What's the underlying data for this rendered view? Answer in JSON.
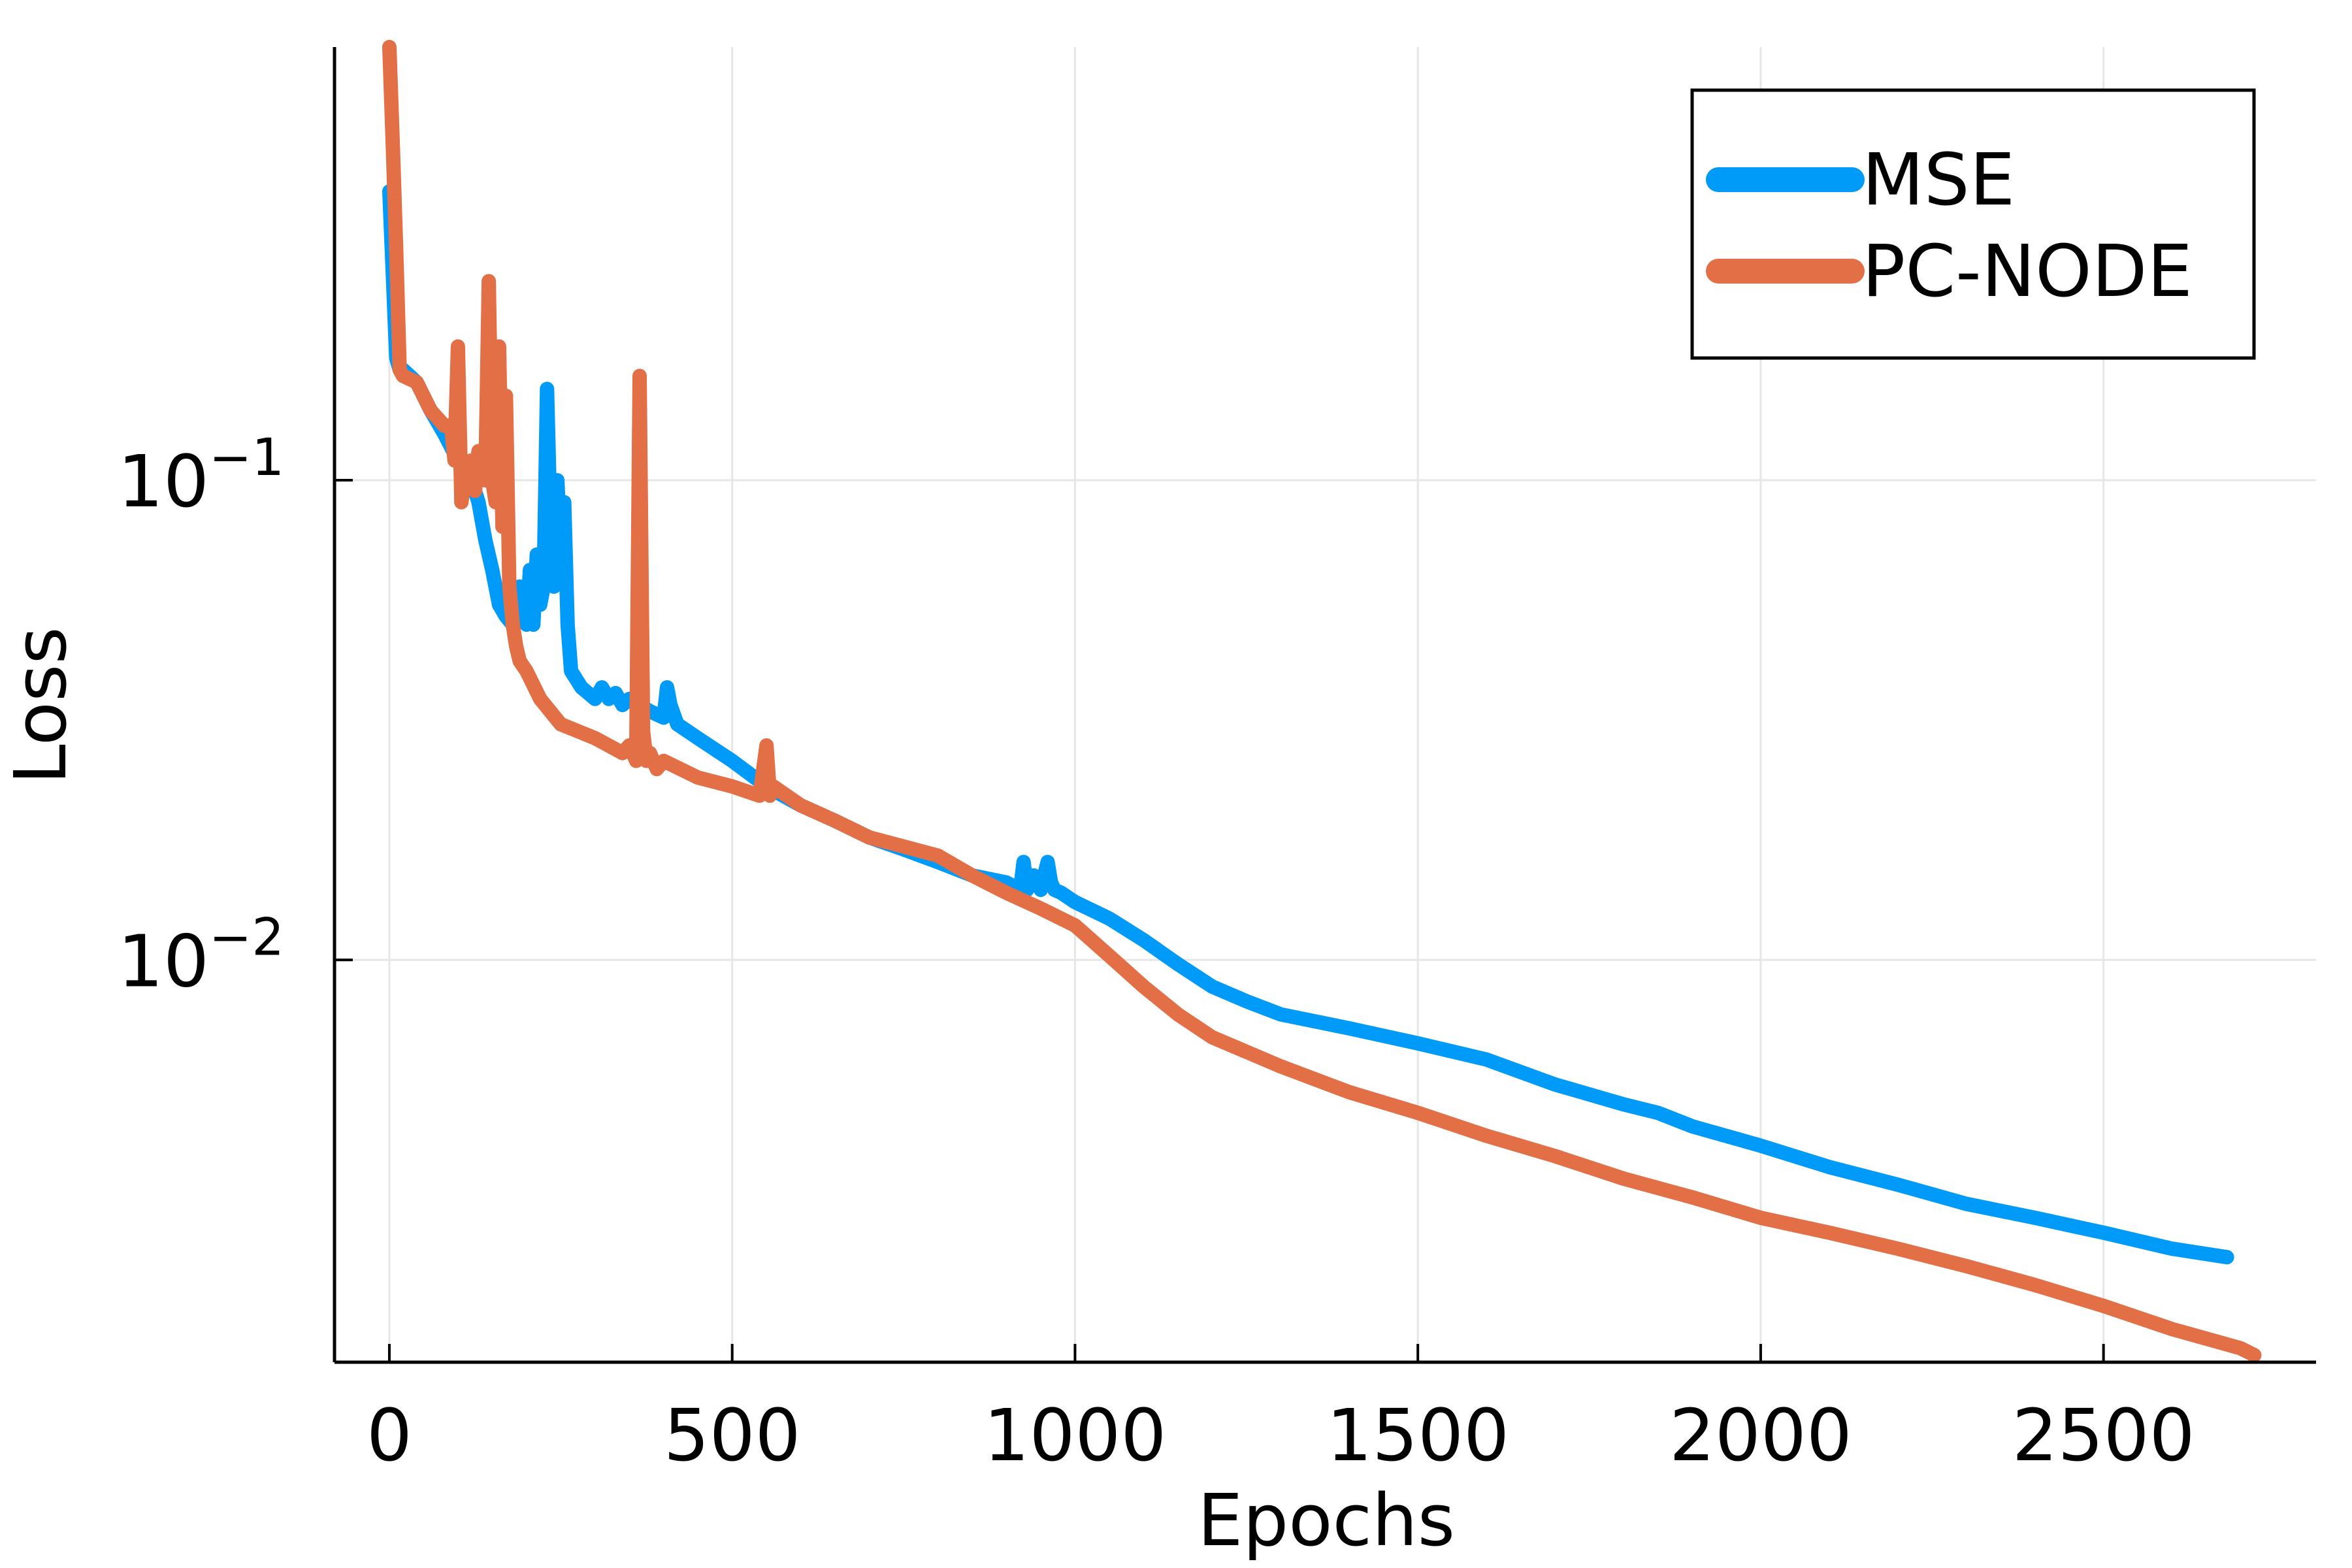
{
  "chart_data": {
    "type": "line",
    "title": "",
    "xlabel": "Epochs",
    "ylabel": "Loss",
    "xlim": [
      -80,
      2810
    ],
    "ylim": [
      0.00145,
      0.8
    ],
    "yscale": "log",
    "xticks": [
      {
        "value": 0,
        "label": "0"
      },
      {
        "value": 500,
        "label": "500"
      },
      {
        "value": 1000,
        "label": "1000"
      },
      {
        "value": 1500,
        "label": "1500"
      },
      {
        "value": 2000,
        "label": "2000"
      },
      {
        "value": 2500,
        "label": "2500"
      }
    ],
    "yticks": [
      {
        "value": 0.1,
        "base": "10",
        "exp": "−1"
      },
      {
        "value": 0.01,
        "base": "10",
        "exp": "−2"
      }
    ],
    "grid": true,
    "legend_position": "top-right",
    "series": [
      {
        "name": "MSE",
        "color": "#009af9",
        "x": [
          0,
          5,
          10,
          15,
          20,
          40,
          60,
          80,
          100,
          120,
          130,
          140,
          150,
          160,
          170,
          180,
          190,
          200,
          205,
          210,
          215,
          220,
          225,
          230,
          235,
          240,
          245,
          250,
          255,
          260,
          265,
          270,
          280,
          300,
          310,
          320,
          330,
          340,
          350,
          380,
          400,
          405,
          410,
          420,
          450,
          500,
          550,
          600,
          650,
          700,
          750,
          800,
          850,
          900,
          920,
          925,
          930,
          940,
          950,
          960,
          965,
          970,
          980,
          1000,
          1050,
          1100,
          1150,
          1200,
          1250,
          1300,
          1400,
          1500,
          1600,
          1700,
          1800,
          1850,
          1900,
          2000,
          2100,
          2200,
          2300,
          2400,
          2500,
          2600,
          2680
        ],
        "y": [
          0.4,
          0.27,
          0.18,
          0.17,
          0.17,
          0.16,
          0.14,
          0.125,
          0.11,
          0.1,
          0.09,
          0.075,
          0.065,
          0.055,
          0.052,
          0.05,
          0.06,
          0.05,
          0.065,
          0.05,
          0.07,
          0.055,
          0.06,
          0.155,
          0.08,
          0.06,
          0.1,
          0.07,
          0.09,
          0.05,
          0.04,
          0.039,
          0.037,
          0.035,
          0.037,
          0.035,
          0.036,
          0.034,
          0.035,
          0.033,
          0.032,
          0.037,
          0.034,
          0.031,
          0.029,
          0.026,
          0.023,
          0.021,
          0.0195,
          0.018,
          0.017,
          0.016,
          0.015,
          0.0145,
          0.014,
          0.016,
          0.014,
          0.015,
          0.014,
          0.016,
          0.0145,
          0.014,
          0.0138,
          0.0132,
          0.0122,
          0.011,
          0.0098,
          0.0088,
          0.0082,
          0.0077,
          0.0072,
          0.0067,
          0.0062,
          0.0055,
          0.005,
          0.0048,
          0.0045,
          0.0041,
          0.0037,
          0.0034,
          0.0031,
          0.0029,
          0.0027,
          0.0025,
          0.0024
        ]
      },
      {
        "name": "PC-NODE",
        "color": "#e26f46",
        "x": [
          0,
          5,
          10,
          15,
          20,
          40,
          60,
          80,
          90,
          95,
          100,
          105,
          110,
          120,
          125,
          130,
          140,
          145,
          150,
          155,
          160,
          165,
          170,
          175,
          180,
          185,
          190,
          200,
          220,
          250,
          300,
          340,
          350,
          360,
          365,
          370,
          375,
          380,
          390,
          400,
          450,
          500,
          540,
          550,
          555,
          560,
          600,
          650,
          700,
          800,
          850,
          900,
          950,
          1000,
          1050,
          1100,
          1150,
          1200,
          1300,
          1400,
          1500,
          1600,
          1700,
          1800,
          1900,
          2000,
          2100,
          2200,
          2300,
          2400,
          2500,
          2600,
          2700,
          2720
        ],
        "y": [
          0.8,
          0.5,
          0.3,
          0.17,
          0.165,
          0.16,
          0.14,
          0.13,
          0.13,
          0.11,
          0.19,
          0.09,
          0.1,
          0.11,
          0.095,
          0.115,
          0.1,
          0.26,
          0.1,
          0.09,
          0.19,
          0.08,
          0.15,
          0.06,
          0.05,
          0.045,
          0.042,
          0.04,
          0.035,
          0.031,
          0.029,
          0.027,
          0.028,
          0.026,
          0.165,
          0.03,
          0.026,
          0.027,
          0.025,
          0.026,
          0.024,
          0.023,
          0.022,
          0.028,
          0.022,
          0.023,
          0.021,
          0.0195,
          0.018,
          0.0165,
          0.015,
          0.0138,
          0.0128,
          0.0118,
          0.0102,
          0.0088,
          0.0077,
          0.0069,
          0.006,
          0.0053,
          0.0048,
          0.0043,
          0.0039,
          0.0035,
          0.0032,
          0.0029,
          0.0027,
          0.0025,
          0.0023,
          0.0021,
          0.0019,
          0.0017,
          0.00155,
          0.0015
        ]
      }
    ]
  }
}
